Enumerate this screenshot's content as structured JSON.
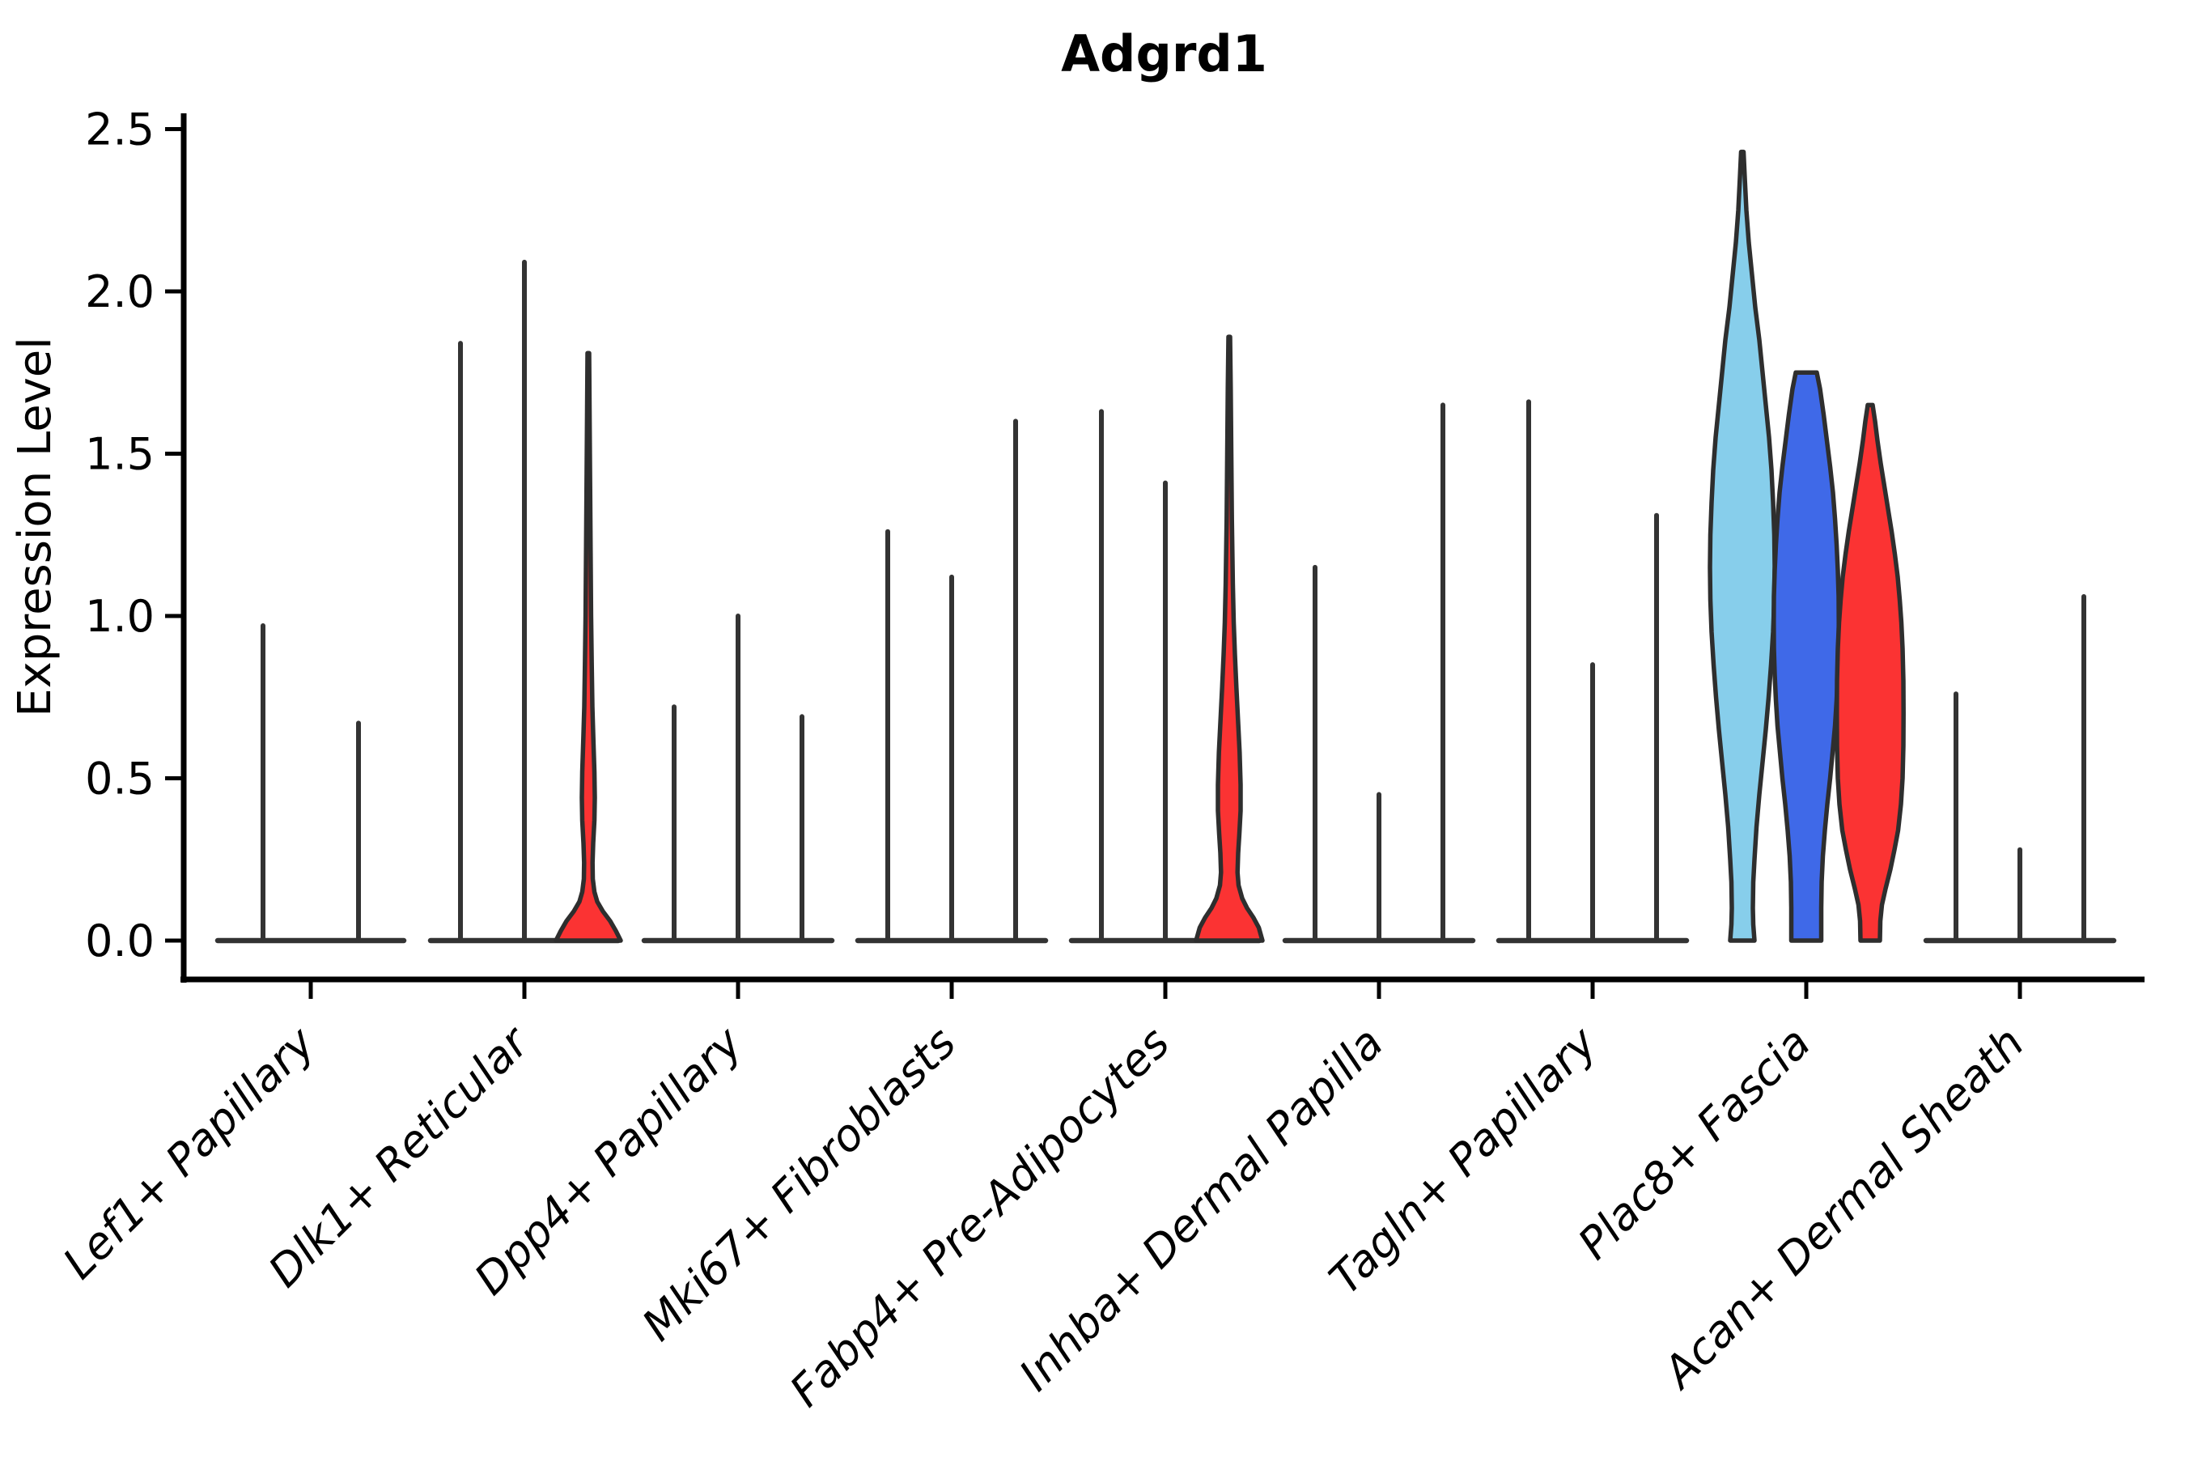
{
  "chart_data": {
    "type": "violin",
    "title": "Adgrd1",
    "ylabel": "Expression Level",
    "xlabel": "",
    "grid": false,
    "legend": "none",
    "ylim": [
      -0.12,
      2.55
    ],
    "ytick_values": [
      0.0,
      0.5,
      1.0,
      1.5,
      2.0,
      2.5
    ],
    "ytick_labels": [
      "0.0",
      "0.5",
      "1.0",
      "1.5",
      "2.0",
      "2.5"
    ],
    "categories": [
      "Lef1+ Papillary",
      "Dlk1+ Reticular",
      "Dpp4+ Papillary",
      "Mki67+ Fibroblasts",
      "Fabp4+ Pre-Adipocytes",
      "Inhba+ Dermal Papilla",
      "Tagln+ Papillary",
      "Plac8+ Fascia",
      "Acan+ Dermal Sheath"
    ],
    "groups": [
      {
        "label": "Lef1+ Papillary",
        "baseline": true,
        "violins": [
          {
            "kind": "spike",
            "max": 0.97
          },
          {
            "kind": "spike",
            "max": 0.67
          }
        ]
      },
      {
        "label": "Dlk1+ Reticular",
        "baseline": true,
        "violins": [
          {
            "kind": "spike",
            "max": 1.84
          },
          {
            "kind": "spike",
            "max": 2.09
          },
          {
            "kind": "shape",
            "max": 1.81,
            "color": "red",
            "profile": [
              [
                1.81,
                1
              ],
              [
                1.6,
                1.6
              ],
              [
                1.4,
                2.2
              ],
              [
                1.2,
                2.8
              ],
              [
                1.0,
                3.4
              ],
              [
                0.85,
                4.2
              ],
              [
                0.72,
                5.0
              ],
              [
                0.62,
                6.2
              ],
              [
                0.52,
                7.5
              ],
              [
                0.44,
                8.0
              ],
              [
                0.37,
                7.5
              ],
              [
                0.3,
                6.0
              ],
              [
                0.24,
                5.2
              ],
              [
                0.19,
                5.5
              ],
              [
                0.15,
                7.5
              ],
              [
                0.12,
                11
              ],
              [
                0.09,
                18
              ],
              [
                0.06,
                27
              ],
              [
                0.03,
                34
              ],
              [
                0.0,
                40
              ]
            ]
          }
        ]
      },
      {
        "label": "Dpp4+ Papillary",
        "baseline": true,
        "violins": [
          {
            "kind": "spike",
            "max": 0.72
          },
          {
            "kind": "spike",
            "max": 1.0
          },
          {
            "kind": "spike",
            "max": 0.69
          }
        ]
      },
      {
        "label": "Mki67+ Fibroblasts",
        "baseline": true,
        "violins": [
          {
            "kind": "spike",
            "max": 1.26
          },
          {
            "kind": "spike",
            "max": 1.12
          },
          {
            "kind": "spike",
            "max": 1.6
          }
        ]
      },
      {
        "label": "Fabp4+ Pre-Adipocytes",
        "baseline": true,
        "violins": [
          {
            "kind": "spike",
            "max": 1.63
          },
          {
            "kind": "spike",
            "max": 1.41
          },
          {
            "kind": "shape",
            "max": 1.86,
            "color": "red",
            "profile": [
              [
                1.86,
                1
              ],
              [
                1.7,
                1.8
              ],
              [
                1.5,
                2.5
              ],
              [
                1.3,
                3.2
              ],
              [
                1.1,
                4.4
              ],
              [
                0.98,
                5.5
              ],
              [
                0.88,
                7.0
              ],
              [
                0.78,
                8.8
              ],
              [
                0.68,
                10.8
              ],
              [
                0.58,
                12.8
              ],
              [
                0.48,
                14.0
              ],
              [
                0.4,
                14.0
              ],
              [
                0.33,
                12.5
              ],
              [
                0.27,
                11.0
              ],
              [
                0.21,
                10.2
              ],
              [
                0.17,
                11.5
              ],
              [
                0.13,
                16
              ],
              [
                0.1,
                22
              ],
              [
                0.07,
                30
              ],
              [
                0.04,
                36.5
              ],
              [
                0.0,
                41
              ]
            ]
          }
        ]
      },
      {
        "label": "Inhba+ Dermal Papilla",
        "baseline": true,
        "violins": [
          {
            "kind": "spike",
            "max": 1.15
          },
          {
            "kind": "spike",
            "max": 0.45
          },
          {
            "kind": "spike",
            "max": 1.65
          }
        ]
      },
      {
        "label": "Tagln+ Papillary",
        "baseline": true,
        "violins": [
          {
            "kind": "spike",
            "max": 1.66
          },
          {
            "kind": "spike",
            "max": 0.85
          },
          {
            "kind": "spike",
            "max": 1.31
          }
        ]
      },
      {
        "label": "Plac8+ Fascia",
        "baseline": false,
        "violins": [
          {
            "kind": "shape",
            "max": 2.43,
            "color": "skyblue",
            "profile": [
              [
                2.43,
                1.5
              ],
              [
                2.35,
                3
              ],
              [
                2.25,
                5
              ],
              [
                2.15,
                8
              ],
              [
                2.05,
                12
              ],
              [
                1.95,
                16
              ],
              [
                1.85,
                21
              ],
              [
                1.75,
                25
              ],
              [
                1.65,
                29
              ],
              [
                1.55,
                33
              ],
              [
                1.45,
                36
              ],
              [
                1.35,
                38
              ],
              [
                1.25,
                39.5
              ],
              [
                1.15,
                40
              ],
              [
                1.05,
                39.5
              ],
              [
                0.95,
                38
              ],
              [
                0.85,
                35.5
              ],
              [
                0.75,
                32.5
              ],
              [
                0.65,
                29
              ],
              [
                0.55,
                25
              ],
              [
                0.45,
                21
              ],
              [
                0.35,
                17.5
              ],
              [
                0.25,
                15
              ],
              [
                0.18,
                13.5
              ],
              [
                0.1,
                13
              ],
              [
                0.05,
                13.5
              ],
              [
                0.0,
                15
              ]
            ]
          },
          {
            "kind": "shape",
            "max": 1.75,
            "color": "blue",
            "profile": [
              [
                1.75,
                13
              ],
              [
                1.7,
                17
              ],
              [
                1.62,
                21.5
              ],
              [
                1.54,
                25.5
              ],
              [
                1.46,
                29.5
              ],
              [
                1.38,
                33
              ],
              [
                1.3,
                35.5
              ],
              [
                1.22,
                37.5
              ],
              [
                1.14,
                39
              ],
              [
                1.06,
                40
              ],
              [
                0.98,
                40.2
              ],
              [
                0.9,
                40
              ],
              [
                0.82,
                39
              ],
              [
                0.74,
                37.5
              ],
              [
                0.66,
                35.5
              ],
              [
                0.58,
                32.5
              ],
              [
                0.5,
                29.5
              ],
              [
                0.42,
                26
              ],
              [
                0.34,
                23
              ],
              [
                0.26,
                20.5
              ],
              [
                0.18,
                19
              ],
              [
                0.1,
                18.5
              ],
              [
                0.0,
                18.5
              ]
            ]
          },
          {
            "kind": "shape",
            "max": 1.65,
            "color": "red",
            "profile": [
              [
                1.65,
                3
              ],
              [
                1.6,
                6
              ],
              [
                1.54,
                9
              ],
              [
                1.47,
                13
              ],
              [
                1.4,
                17.5
              ],
              [
                1.33,
                22
              ],
              [
                1.26,
                26.5
              ],
              [
                1.19,
                30.5
              ],
              [
                1.12,
                34
              ],
              [
                1.05,
                36.5
              ],
              [
                0.98,
                38.5
              ],
              [
                0.9,
                40
              ],
              [
                0.8,
                41
              ],
              [
                0.7,
                41.2
              ],
              [
                0.6,
                41
              ],
              [
                0.5,
                40
              ],
              [
                0.42,
                38
              ],
              [
                0.34,
                34.5
              ],
              [
                0.28,
                30
              ],
              [
                0.22,
                25
              ],
              [
                0.16,
                19
              ],
              [
                0.11,
                14.5
              ],
              [
                0.06,
                12.5
              ],
              [
                0.0,
                12
              ]
            ]
          }
        ]
      },
      {
        "label": "Acan+ Dermal Sheath",
        "baseline": true,
        "violins": [
          {
            "kind": "spike",
            "max": 0.76
          },
          {
            "kind": "spike",
            "max": 0.28
          },
          {
            "kind": "spike",
            "max": 1.06
          }
        ]
      }
    ],
    "palette": {
      "skyblue": "#87CEEB",
      "blue": "#3F69E8",
      "red": "#FB3333",
      "edge": "#2E2E2E",
      "spike": "#333333",
      "axis": "#000000"
    },
    "layout_hints": {
      "legend_position": "none",
      "x_label_rotation_deg": 45,
      "violins_per_group_max": 3
    }
  }
}
